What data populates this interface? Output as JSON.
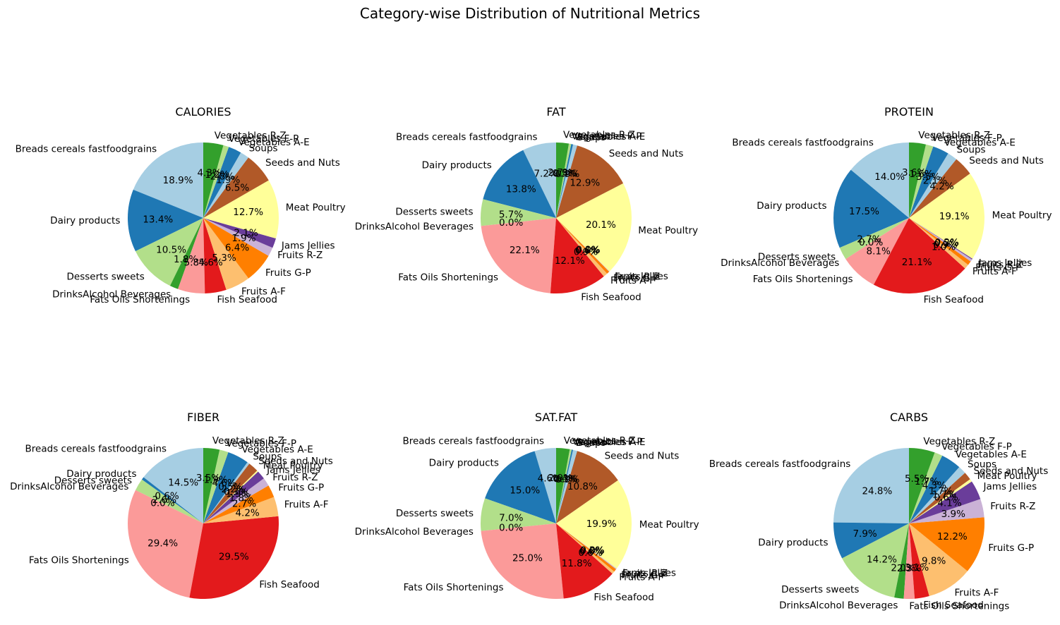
{
  "suptitle": "Category-wise Distribution of Nutritional Metrics",
  "categories": [
    "Breads cereals fastfoodgrains",
    "Dairy products",
    "Desserts sweets",
    "DrinksAlcohol Beverages",
    "Fats Oils Shortenings",
    "Fish Seafood",
    "Fruits A-F",
    "Fruits G-P",
    "Fruits R-Z",
    "Jams Jellies",
    "Meat Poultry",
    "Seeds and Nuts",
    "Soups",
    "Vegetables A-E",
    "Vegetables F-P",
    "Vegetables R-Z"
  ],
  "colors": [
    "#a6cee3",
    "#1f78b4",
    "#b2df8a",
    "#33a02c",
    "#fb9a99",
    "#e31a1c",
    "#fdbf6f",
    "#ff7f00",
    "#cab2d6",
    "#6a3d9a",
    "#ffff99",
    "#b15928",
    "#a6cee3",
    "#1f78b4",
    "#b2df8a",
    "#33a02c"
  ],
  "chart_data": [
    {
      "type": "pie",
      "title": "CALORIES",
      "start_angle": 90,
      "autopct": "%1.1f%%",
      "values": [
        18.9,
        13.4,
        10.5,
        1.8,
        5.8,
        4.6,
        5.3,
        6.4,
        1.9,
        2.1,
        12.7,
        6.5,
        1.9,
        2.8,
        1.2,
        4.3
      ]
    },
    {
      "type": "pie",
      "title": "FAT",
      "start_angle": 90,
      "autopct": "%1.1f%%",
      "values": [
        7.2,
        13.8,
        5.7,
        0.0,
        22.1,
        12.1,
        0.9,
        0.6,
        0.1,
        0.0,
        20.1,
        12.9,
        0.9,
        0.4,
        0.5,
        2.7
      ]
    },
    {
      "type": "pie",
      "title": "PROTEIN",
      "start_angle": 90,
      "autopct": "%1.1f%%",
      "values": [
        14.0,
        17.5,
        2.7,
        0.0,
        8.1,
        21.1,
        1.0,
        0.9,
        0.5,
        0.2,
        19.1,
        4.2,
        2.1,
        3.5,
        1.6,
        3.6
      ]
    },
    {
      "type": "pie",
      "title": "FIBER",
      "start_angle": 90,
      "autopct": "%1.1f%%",
      "values": [
        14.6,
        0.6,
        2.6,
        0.0,
        29.5,
        29.6,
        4.2,
        2.7,
        1.8,
        1.9,
        0.3,
        2.2,
        0.5,
        4.6,
        1.9,
        3.5
      ]
    },
    {
      "type": "pie",
      "title": "SAT.FAT",
      "start_angle": 90,
      "autopct": "%1.1f%%",
      "values": [
        4.6,
        15.0,
        7.0,
        0.0,
        25.0,
        11.8,
        0.6,
        0.6,
        0.2,
        0.0,
        19.9,
        10.8,
        0.9,
        0.3,
        0.4,
        2.9
      ]
    },
    {
      "type": "pie",
      "title": "CARBS",
      "start_angle": 90,
      "autopct": "%1.1f%%",
      "values": [
        24.6,
        7.8,
        14.1,
        2.0,
        2.3,
        3.1,
        9.7,
        12.1,
        3.9,
        4.1,
        0.6,
        1.7,
        1.7,
        4.3,
        1.7,
        5.5
      ]
    }
  ]
}
